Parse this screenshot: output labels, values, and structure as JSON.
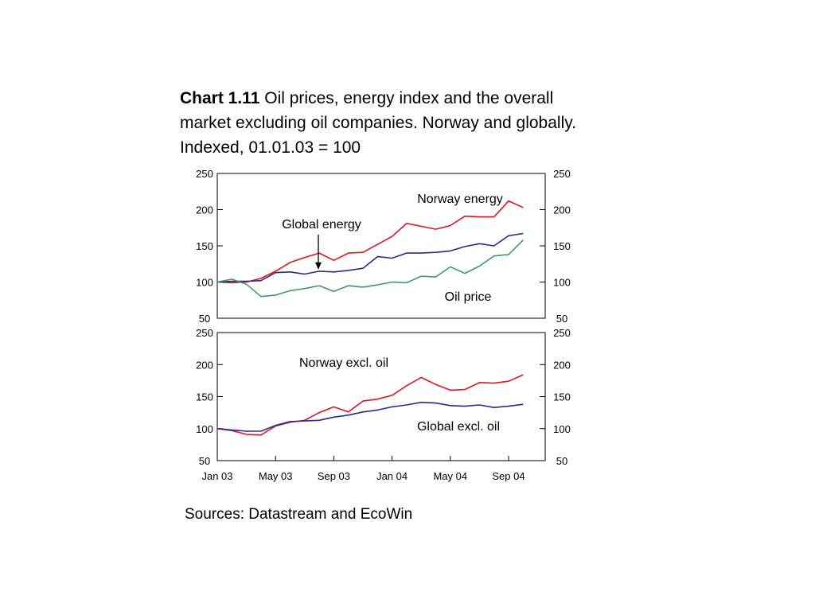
{
  "title": {
    "label": "Chart 1.11",
    "text": "Oil prices, energy index and the overall market excluding oil companies. Norway and globally. Indexed, 01.01.03 = 100"
  },
  "source": "Sources: Datastream and EcoWin",
  "colors": {
    "red": "#e0141e",
    "blue": "#2b2a8c",
    "green": "#3a9a68"
  },
  "chart_data": [
    {
      "type": "line",
      "panel": "top",
      "ylim": [
        50,
        250
      ],
      "yticks": [
        50,
        100,
        150,
        200,
        250
      ],
      "x": [
        "Jan 03",
        "Feb 03",
        "Mar 03",
        "Apr 03",
        "May 03",
        "Jun 03",
        "Jul 03",
        "Aug 03",
        "Sep 03",
        "Oct 03",
        "Nov 03",
        "Dec 03",
        "Jan 04",
        "Feb 04",
        "Mar 04",
        "Apr 04",
        "May 04",
        "Jun 04",
        "Jul 04",
        "Aug 04",
        "Sep 04",
        "Oct 04"
      ],
      "series": [
        {
          "name": "Norway energy",
          "color": "red",
          "values": [
            100,
            99,
            100,
            105,
            115,
            127,
            134,
            140,
            130,
            140,
            141,
            152,
            163,
            181,
            177,
            173,
            178,
            191,
            190,
            190,
            212,
            203
          ]
        },
        {
          "name": "Global energy",
          "color": "blue",
          "values": [
            100,
            101,
            101,
            102,
            113,
            114,
            111,
            115,
            114,
            116,
            119,
            135,
            133,
            140,
            140,
            141,
            143,
            149,
            153,
            150,
            164,
            167
          ]
        },
        {
          "name": "Oil price",
          "color": "green",
          "values": [
            100,
            104,
            97,
            80,
            82,
            88,
            91,
            95,
            87,
            95,
            93,
            96,
            100,
            99,
            108,
            107,
            121,
            112,
            122,
            136,
            138,
            158
          ]
        }
      ],
      "annotations": [
        {
          "text": "Norway energy",
          "series": "Norway energy"
        },
        {
          "text": "Global energy",
          "series": "Global energy",
          "arrow_at": "Sep 03"
        },
        {
          "text": "Oil price",
          "series": "Oil price"
        }
      ]
    },
    {
      "type": "line",
      "panel": "bottom",
      "ylim": [
        50,
        250
      ],
      "yticks": [
        50,
        100,
        150,
        200,
        250
      ],
      "x": [
        "Jan 03",
        "Feb 03",
        "Mar 03",
        "Apr 03",
        "May 03",
        "Jun 03",
        "Jul 03",
        "Aug 03",
        "Sep 03",
        "Oct 03",
        "Nov 03",
        "Dec 03",
        "Jan 04",
        "Feb 04",
        "Mar 04",
        "Apr 04",
        "May 04",
        "Jun 04",
        "Jul 04",
        "Aug 04",
        "Sep 04",
        "Oct 04"
      ],
      "xticks": [
        "Jan 03",
        "May 03",
        "Sep 03",
        "Jan 04",
        "May 04",
        "Sep 04"
      ],
      "series": [
        {
          "name": "Norway excl. oil",
          "color": "red",
          "values": [
            100,
            97,
            91,
            90,
            104,
            110,
            113,
            125,
            134,
            126,
            143,
            146,
            152,
            167,
            180,
            169,
            160,
            161,
            172,
            171,
            174,
            184
          ]
        },
        {
          "name": "Global excl. oil",
          "color": "blue",
          "values": [
            100,
            98,
            96,
            96,
            105,
            111,
            112,
            113,
            118,
            121,
            126,
            129,
            134,
            137,
            141,
            140,
            136,
            135,
            137,
            133,
            135,
            138
          ]
        }
      ],
      "annotations": [
        {
          "text": "Norway excl. oil",
          "series": "Norway excl. oil"
        },
        {
          "text": "Global excl. oil",
          "series": "Global excl. oil"
        }
      ]
    }
  ]
}
